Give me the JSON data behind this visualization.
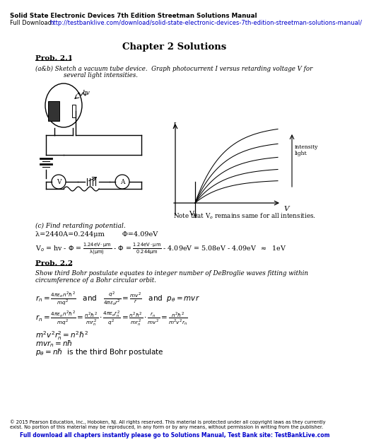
{
  "title_bold": "Solid State Electronic Devices 7th Edition Streetman Solutions Manual",
  "url": "http://testbanklive.com/download/solid-state-electronic-devices-7th-edition-streetman-solutions-manual/",
  "chapter_title": "Chapter 2 Solutions",
  "footer1": "© 2015 Pearson Education, Inc., Hoboken, NJ. All rights reserved. This material is protected under all copyright laws as they currently",
  "footer2": "exist. No portion of this material may be reproduced, in any form or by any means, without permission in writing from the publisher.",
  "footer_bold": "Full download all chapters instantly please go to Solutions Manual, Test Bank site: TestBankLive.com",
  "bg_color": "#ffffff"
}
